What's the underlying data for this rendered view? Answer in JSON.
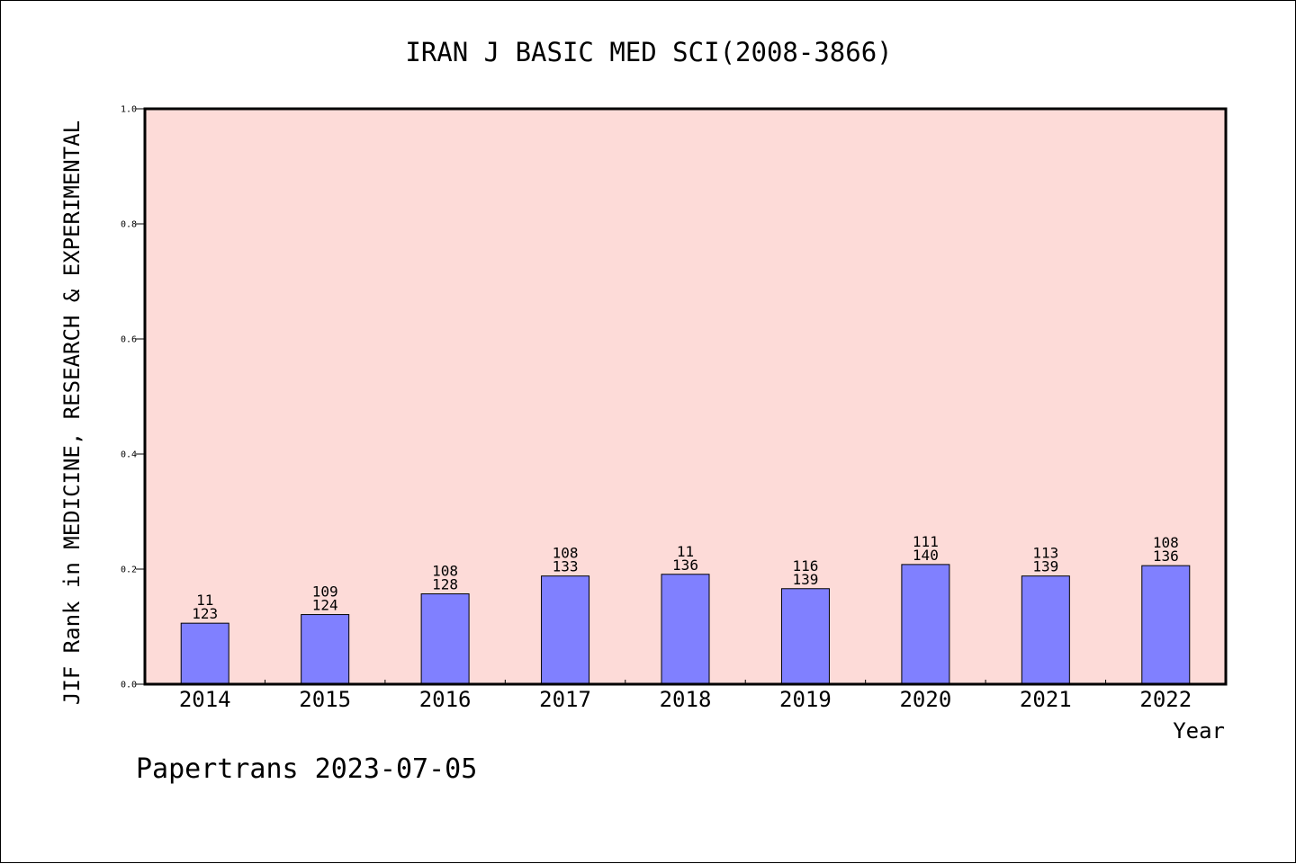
{
  "chart_data": {
    "type": "bar",
    "title": "IRAN J BASIC MED SCI(2008-3866)",
    "xlabel": "Year",
    "ylabel": "JIF Rank in MEDICINE, RESEARCH & EXPERIMENTAL",
    "ylim": [
      0,
      1.0
    ],
    "y_ticks": [
      "0.0",
      "0.2",
      "0.4",
      "0.6",
      "0.8",
      "1.0"
    ],
    "grid": false,
    "categories": [
      "2014",
      "2015",
      "2016",
      "2017",
      "2018",
      "2019",
      "2020",
      "2021",
      "2022"
    ],
    "values": [
      0.106,
      0.121,
      0.157,
      0.188,
      0.191,
      0.166,
      0.208,
      0.188,
      0.206
    ],
    "rank_labels": [
      "11",
      "109",
      "108",
      "108",
      "11",
      "116",
      "111",
      "113",
      "108"
    ],
    "total_labels": [
      "123",
      "124",
      "128",
      "133",
      "136",
      "139",
      "140",
      "139",
      "136"
    ],
    "colors": {
      "plot_background": "#fddbd8",
      "bar_fill": "#8080ff",
      "bar_stroke": "#000000",
      "axis": "#000000"
    }
  },
  "footer": {
    "text": "Papertrans 2023-07-05"
  }
}
